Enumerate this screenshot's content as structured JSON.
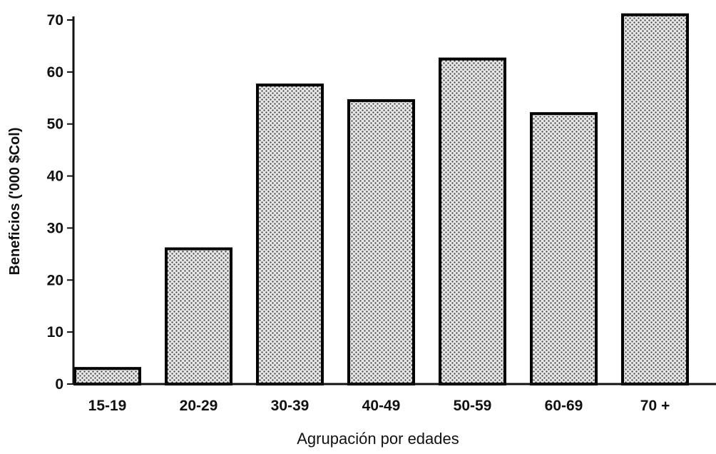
{
  "chart_data": {
    "type": "bar",
    "title": "",
    "xlabel": "Agrupación por edades",
    "ylabel": "Beneficios ('000 $Col)",
    "categories": [
      "15-19",
      "20-29",
      "30-39",
      "40-49",
      "50-59",
      "60-69",
      "70 +"
    ],
    "values": [
      3,
      26,
      57.5,
      54.5,
      62.5,
      52,
      71
    ],
    "ylim": [
      0,
      70
    ],
    "yticks": [
      "0",
      "10",
      "20",
      "30",
      "40",
      "50",
      "60",
      "70"
    ],
    "grid": false,
    "legend": "none",
    "bar_fill": "stippled gray",
    "bar_outline": "#000000"
  }
}
